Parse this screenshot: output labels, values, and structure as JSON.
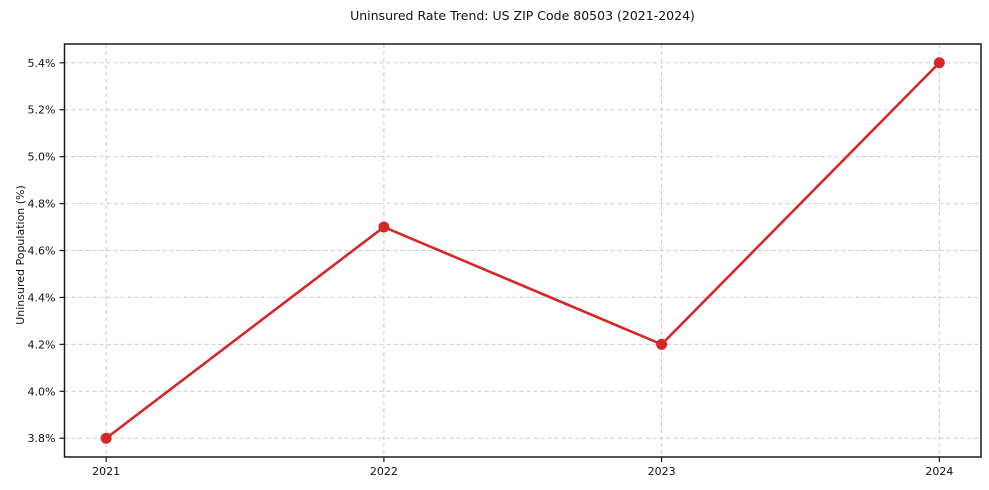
{
  "chart_data": {
    "type": "line",
    "title": "Uninsured Rate Trend: US ZIP Code 80503 (2021-2024)",
    "xlabel": "",
    "ylabel": "Uninsured Population (%)",
    "x": [
      2021,
      2022,
      2023,
      2024
    ],
    "series": [
      {
        "name": "Uninsured Population (%)",
        "values": [
          3.8,
          4.7,
          4.2,
          5.4
        ]
      }
    ],
    "x_tick_labels": [
      "2021",
      "2022",
      "2023",
      "2024"
    ],
    "y_tick_values": [
      3.8,
      4.0,
      4.2,
      4.4,
      4.6,
      4.8,
      5.0,
      5.2,
      5.4
    ],
    "y_tick_labels": [
      "3.8%",
      "4.0%",
      "4.2%",
      "4.4%",
      "4.6%",
      "4.8%",
      "5.0%",
      "5.2%",
      "5.4%"
    ],
    "xlim": [
      2020.85,
      2024.15
    ],
    "ylim": [
      3.72,
      5.48
    ],
    "grid": true,
    "legend": "none",
    "colors": {
      "line": "#d62728",
      "marker": "#d62728",
      "grid": "#cccccc",
      "spine": "#1a1a1a",
      "background": "#ffffff"
    }
  }
}
